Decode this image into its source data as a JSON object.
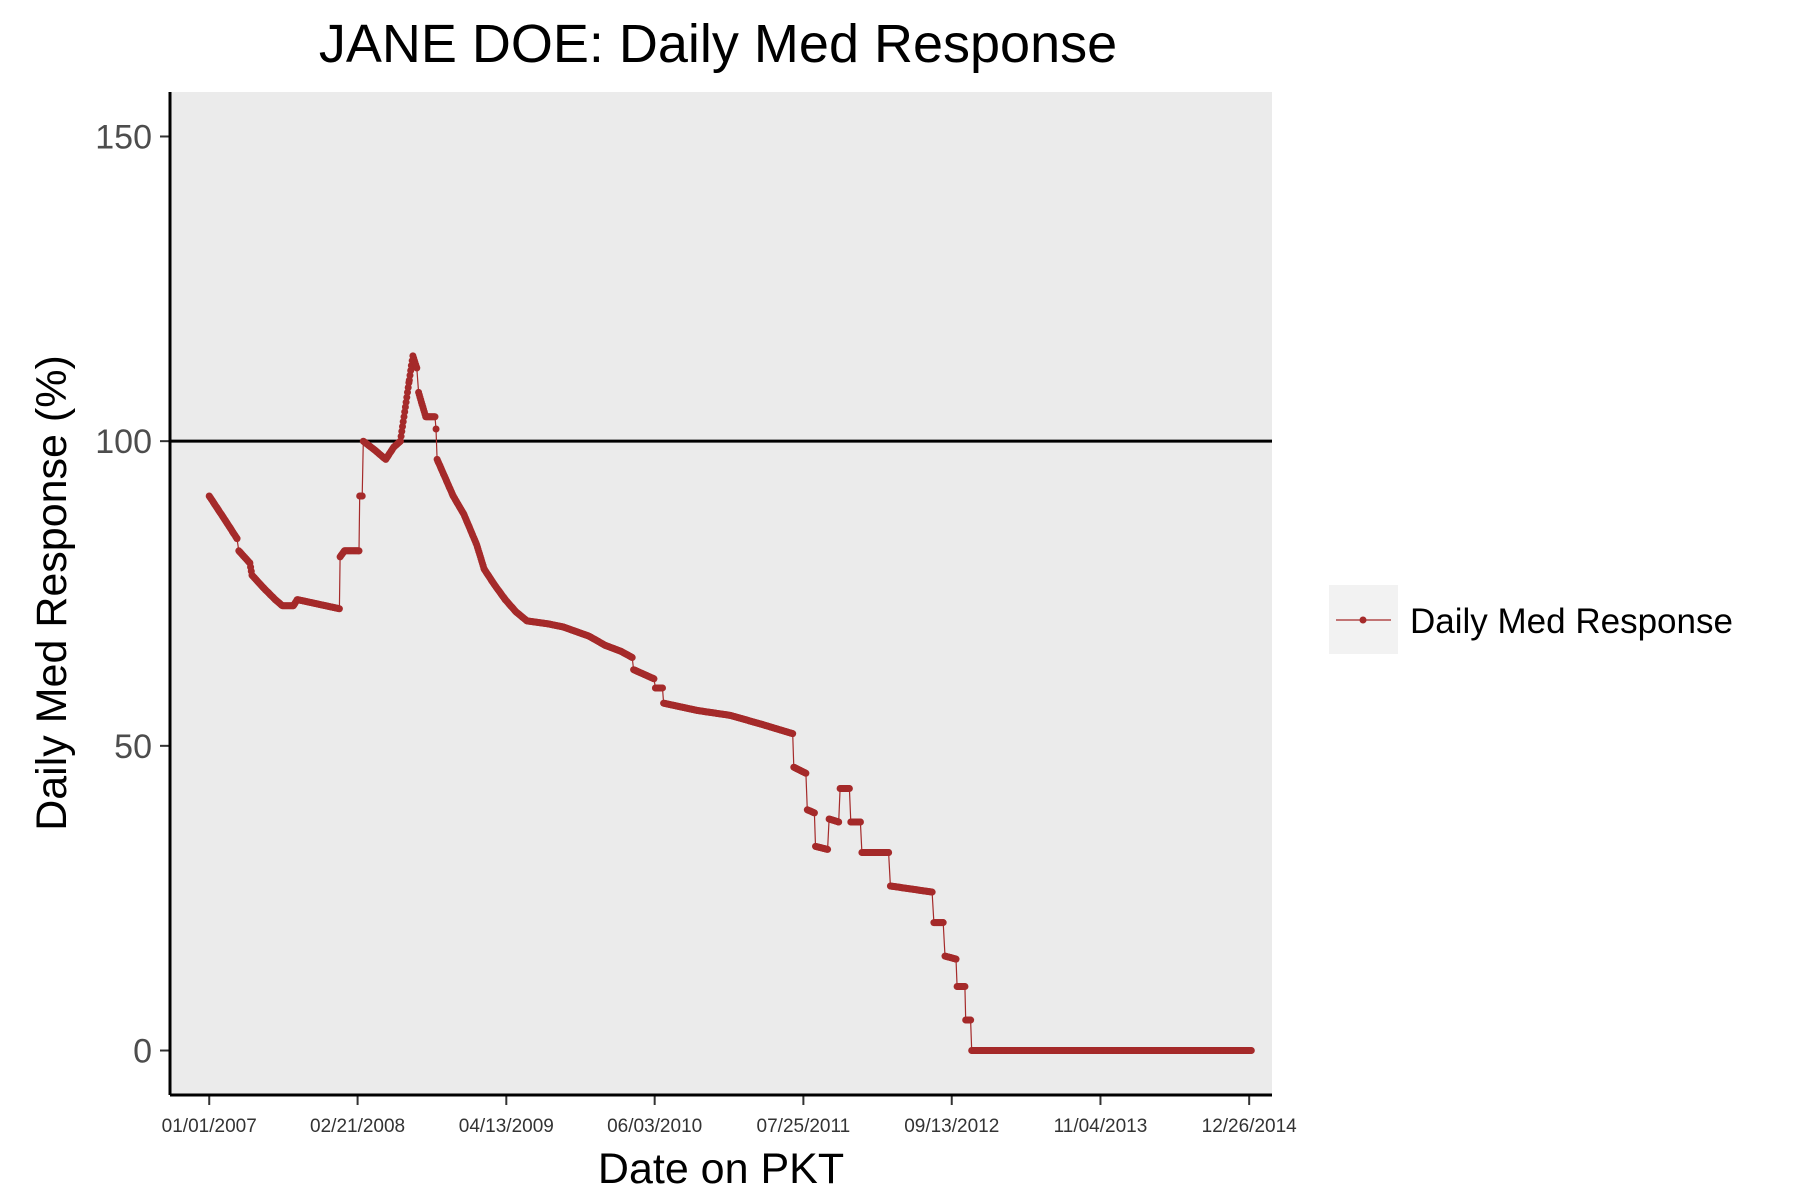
{
  "chart_data": {
    "type": "line",
    "title": "JANE DOE: Daily Med Response",
    "xlabel": "Date on PKT",
    "ylabel": "Daily Med Response (%)",
    "x_tick_labels": [
      "01/01/2007",
      "02/21/2008",
      "04/13/2009",
      "06/03/2010",
      "07/25/2011",
      "09/13/2012",
      "11/04/2013",
      "12/26/2014"
    ],
    "y_ticks": [
      0,
      50,
      100,
      150
    ],
    "xlim": [
      "2006-09-13",
      "2015-02-28"
    ],
    "ylim": [
      -7.3,
      157.3
    ],
    "reference_line": {
      "y": 100
    },
    "grid": false,
    "background": "#ebebeb",
    "legend": {
      "position": "right",
      "entries": [
        "Daily Med Response"
      ]
    },
    "series": [
      {
        "name": "Daily Med Response",
        "color": "#a52a2a",
        "points": [
          [
            "2007-01-01",
            91
          ],
          [
            "2007-02-15",
            87
          ],
          [
            "2007-03-20",
            84
          ],
          [
            "2007-03-25",
            82
          ],
          [
            "2007-04-25",
            80
          ],
          [
            "2007-05-01",
            78
          ],
          [
            "2007-06-01",
            76
          ],
          [
            "2007-07-05",
            74
          ],
          [
            "2007-07-25",
            73
          ],
          [
            "2007-08-25",
            73
          ],
          [
            "2007-09-05",
            74
          ],
          [
            "2008-01-01",
            72.5
          ],
          [
            "2008-01-03",
            81
          ],
          [
            "2008-01-15",
            82
          ],
          [
            "2008-02-25",
            82
          ],
          [
            "2008-02-27",
            91
          ],
          [
            "2008-03-05",
            91
          ],
          [
            "2008-03-08",
            100
          ],
          [
            "2008-04-10",
            98.5
          ],
          [
            "2008-05-10",
            97
          ],
          [
            "2008-06-01",
            99
          ],
          [
            "2008-06-20",
            100
          ],
          [
            "2008-07-15",
            110
          ],
          [
            "2008-07-25",
            114
          ],
          [
            "2008-08-05",
            112
          ],
          [
            "2008-08-10",
            108
          ],
          [
            "2008-08-30",
            104
          ],
          [
            "2008-09-25",
            104
          ],
          [
            "2008-09-28",
            102
          ],
          [
            "2008-10-01",
            97
          ],
          [
            "2008-11-15",
            91
          ],
          [
            "2008-12-15",
            88
          ],
          [
            "2009-01-20",
            83
          ],
          [
            "2009-02-10",
            79
          ],
          [
            "2009-03-10",
            76.5
          ],
          [
            "2009-04-10",
            74
          ],
          [
            "2009-05-10",
            72
          ],
          [
            "2009-06-10",
            70.5
          ],
          [
            "2009-08-10",
            70
          ],
          [
            "2009-09-20",
            69.5
          ],
          [
            "2009-12-01",
            68
          ],
          [
            "2010-01-15",
            66.5
          ],
          [
            "2010-03-01",
            65.5
          ],
          [
            "2010-04-01",
            64.5
          ],
          [
            "2010-04-05",
            62.5
          ],
          [
            "2010-06-01",
            61
          ],
          [
            "2010-06-05",
            59.5
          ],
          [
            "2010-06-25",
            59.5
          ],
          [
            "2010-06-28",
            57
          ],
          [
            "2010-10-01",
            55.8
          ],
          [
            "2011-01-01",
            55
          ],
          [
            "2011-04-01",
            53.5
          ],
          [
            "2011-06-25",
            52
          ],
          [
            "2011-06-28",
            46.5
          ],
          [
            "2011-08-01",
            45.5
          ],
          [
            "2011-08-05",
            39.5
          ],
          [
            "2011-08-25",
            39
          ],
          [
            "2011-08-28",
            33.5
          ],
          [
            "2011-10-01",
            33
          ],
          [
            "2011-10-05",
            38
          ],
          [
            "2011-11-01",
            37.5
          ],
          [
            "2011-11-05",
            43
          ],
          [
            "2011-12-01",
            43
          ],
          [
            "2011-12-05",
            37.5
          ],
          [
            "2012-01-01",
            37.5
          ],
          [
            "2012-01-05",
            32.5
          ],
          [
            "2012-03-20",
            32.5
          ],
          [
            "2012-03-25",
            27
          ],
          [
            "2012-07-20",
            26
          ],
          [
            "2012-07-25",
            21
          ],
          [
            "2012-08-20",
            21
          ],
          [
            "2012-08-25",
            15.5
          ],
          [
            "2012-09-25",
            15
          ],
          [
            "2012-09-28",
            10.5
          ],
          [
            "2012-10-20",
            10.5
          ],
          [
            "2012-10-22",
            5
          ],
          [
            "2012-11-05",
            5
          ],
          [
            "2012-11-08",
            0
          ],
          [
            "2015-01-01",
            0
          ]
        ]
      }
    ]
  }
}
